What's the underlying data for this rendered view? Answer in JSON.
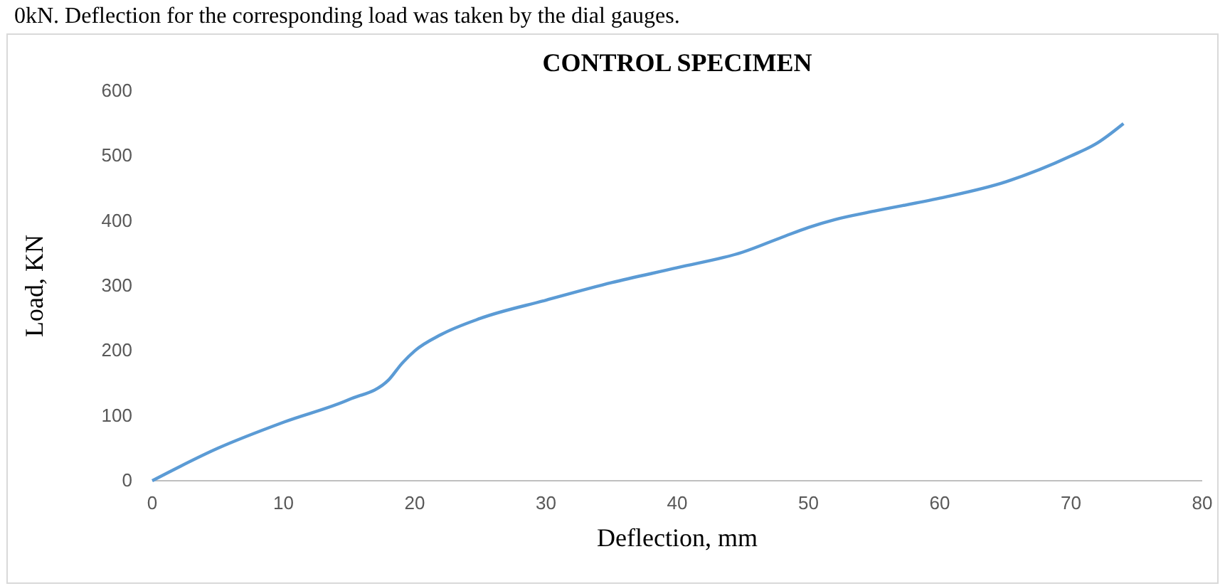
{
  "chart_data": {
    "type": "line",
    "title": "CONTROL SPECIMEN",
    "xlabel": "Deflection, mm",
    "ylabel": "Load, KN",
    "annotations": [
      "0kN. Deflection for the corresponding load was taken by the dial gauges."
    ],
    "series": [
      {
        "color": "#5b9bd5",
        "x": [
          0,
          5,
          10,
          15,
          18,
          19,
          20,
          22,
          25,
          30,
          35,
          40,
          45,
          48,
          50,
          52,
          55,
          60,
          65,
          70,
          72,
          74
        ],
        "values": [
          0,
          50,
          90,
          125,
          155,
          180,
          200,
          225,
          250,
          278,
          305,
          328,
          352,
          375,
          390,
          402,
          415,
          435,
          460,
          500,
          520,
          550
        ]
      }
    ],
    "xlim": [
      0,
      80
    ],
    "xticks": [
      0,
      10,
      20,
      30,
      40,
      50,
      60,
      70,
      80
    ],
    "ylim": [
      0,
      600
    ],
    "yticks": [
      0,
      100,
      200,
      300,
      400,
      500,
      600
    ],
    "marker": "none",
    "line_style": "solid"
  }
}
